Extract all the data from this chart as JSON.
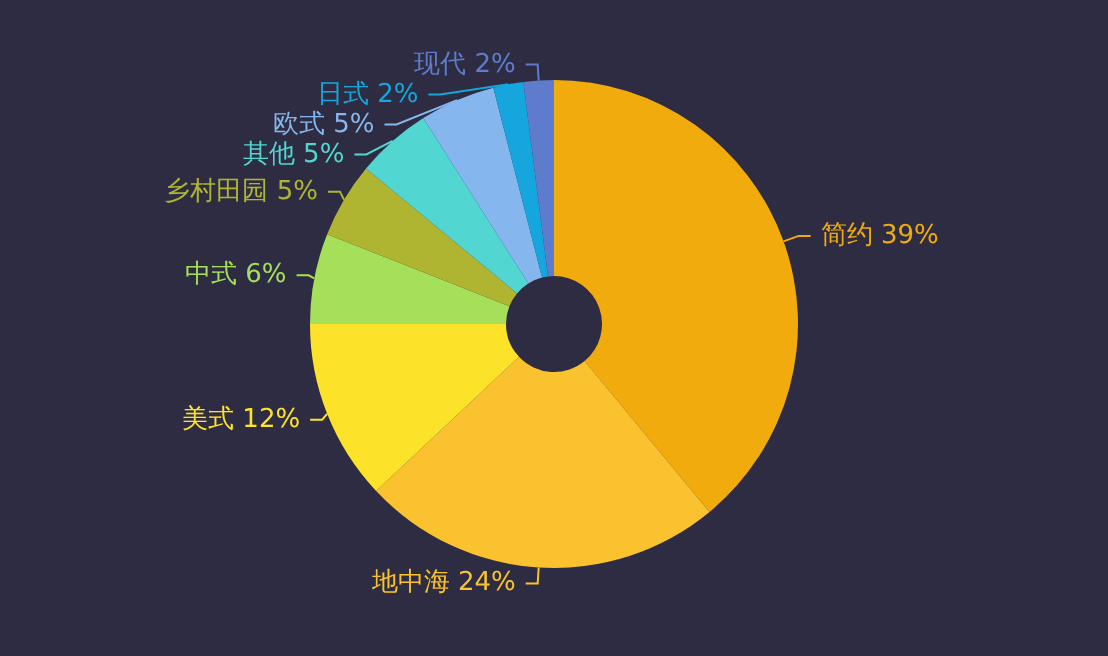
{
  "chart_data": {
    "type": "donut",
    "categories": [
      "简约",
      "地中海",
      "美式",
      "中式",
      "乡村田园",
      "其他",
      "欧式",
      "日式",
      "现代"
    ],
    "values": [
      39,
      24,
      12,
      6,
      5,
      5,
      5,
      2,
      2
    ],
    "value_labels": [
      "39%",
      "24%",
      "12%",
      "6%",
      "5%",
      "5%",
      "5%",
      "2%",
      "2%"
    ],
    "colors": [
      "#f2ab0c",
      "#f9c22e",
      "#fde22a",
      "#a6e05a",
      "#b0b531",
      "#52d6d2",
      "#86b6ee",
      "#14a6dc",
      "#5f7ccc"
    ],
    "legend": false
  }
}
